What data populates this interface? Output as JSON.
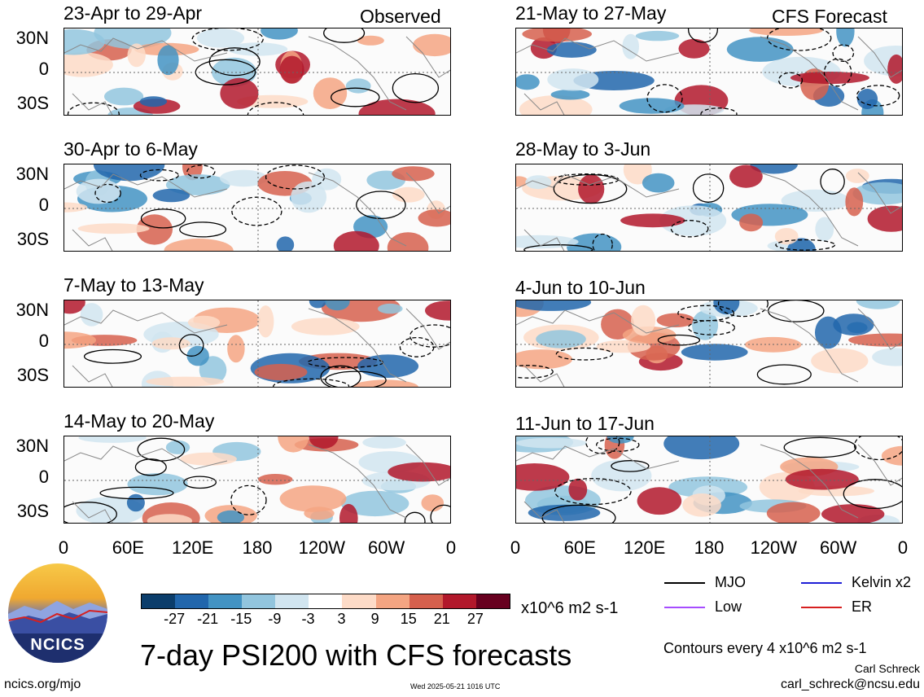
{
  "header": {
    "observed": "Observed",
    "forecast": "CFS Forecast"
  },
  "panels_left": [
    {
      "title": "23-Apr to 29-Apr"
    },
    {
      "title": "30-Apr to 6-May"
    },
    {
      "title": "7-May to 13-May"
    },
    {
      "title": "14-May to 20-May"
    }
  ],
  "panels_right": [
    {
      "title": "21-May to 27-May"
    },
    {
      "title": "28-May to 3-Jun"
    },
    {
      "title": "4-Jun to 10-Jun"
    },
    {
      "title": "11-Jun to 17-Jun"
    }
  ],
  "y_ticks": [
    "30N",
    "0",
    "30S"
  ],
  "x_ticks": [
    "0",
    "60E",
    "120E",
    "180",
    "120W",
    "60W",
    "0"
  ],
  "colorbar": {
    "unit": "x10^6 m2 s-1",
    "ticks": [
      "-27",
      "-21",
      "-15",
      "-9",
      "-3",
      "3",
      "9",
      "15",
      "21",
      "27"
    ],
    "colors": [
      "#0b3d6b",
      "#2166ac",
      "#4393c3",
      "#92c5de",
      "#d1e5f0",
      "#ffffff",
      "#fddbc7",
      "#f4a582",
      "#d6604d",
      "#b2182b",
      "#67001f"
    ]
  },
  "legend": {
    "mjo": "MJO",
    "kelvin": "Kelvin x2",
    "low": "Low",
    "er": "ER",
    "colors": {
      "mjo": "#000000",
      "kelvin": "#1f1fd6",
      "low": "#a64dff",
      "er": "#d62020"
    }
  },
  "logo": {
    "text": "NCICS"
  },
  "footer": {
    "title": "7-day PSI200 with CFS forecasts",
    "contours": "Contours every 4 x10^6 m2 s-1",
    "author": "Carl Schreck",
    "email": "carl_schreck@ncsu.edu",
    "url": "ncics.org/mjo",
    "timestamp": "Wed 2025-05-21 1016 UTC"
  },
  "chart_data": {
    "type": "heatmap",
    "variable": "PSI200",
    "x_range": [
      0,
      360
    ],
    "y_range": [
      -40,
      40
    ],
    "y_ticks_deg": [
      30,
      0,
      -30
    ],
    "x_ticks_deg": [
      0,
      60,
      120,
      180,
      240,
      300,
      360
    ],
    "color_levels": [
      -27,
      -21,
      -15,
      -9,
      -3,
      3,
      9,
      15,
      21,
      27
    ]
  }
}
